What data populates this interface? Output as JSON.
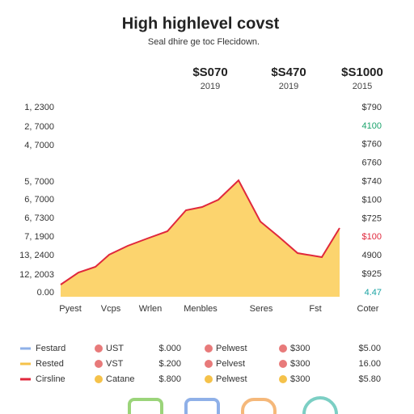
{
  "title": "High highlevel covst",
  "subtitle": "Seal dhire ge toc Flecidown.",
  "stats": [
    {
      "value": "$S070",
      "year": "2019"
    },
    {
      "value": "$S470",
      "year": "2019"
    },
    {
      "value": "$S1000",
      "year": "2015"
    }
  ],
  "left_labels": [
    "1, 2300",
    "2, 7000",
    "4, 7000",
    "5, 7000",
    "6, 7000",
    "6, 7300",
    "7, 1900",
    "13, 2400",
    "12, 2003",
    "0.00"
  ],
  "right_labels": [
    {
      "text": "$790",
      "color": "#333333"
    },
    {
      "text": "4100",
      "color": "#1aa36b"
    },
    {
      "text": "$760",
      "color": "#333333"
    },
    {
      "text": "6760",
      "color": "#333333"
    },
    {
      "text": "$740",
      "color": "#333333"
    },
    {
      "text": "$100",
      "color": "#333333"
    },
    {
      "text": "$725",
      "color": "#333333"
    },
    {
      "text": "$100",
      "color": "#e0283c"
    },
    {
      "text": "4900",
      "color": "#333333"
    },
    {
      "text": "$925",
      "color": "#333333"
    },
    {
      "text": "4.47",
      "color": "#1aa3a3"
    }
  ],
  "x_labels": [
    "Pyest",
    "Vcps",
    "Wrlen",
    "Menbles",
    "Seres",
    "Fst",
    "Coter"
  ],
  "legend": [
    {
      "name": "Festard",
      "color": "#8fb0e8",
      "a": "UST",
      "a_color": "#e87a7a",
      "b": "$.000",
      "c": "Pelwest",
      "c_color": "#e87a7a",
      "d": "$300",
      "d_color": "#e87a7a",
      "e": "$5.00"
    },
    {
      "name": "Rested",
      "color": "#f5c24a",
      "a": "VST",
      "a_color": "#e87a7a",
      "b": "$.200",
      "c": "Pelvest",
      "c_color": "#e87a7a",
      "d": "$300",
      "d_color": "#e87a7a",
      "e": "16.00"
    },
    {
      "name": "Cirsline",
      "color": "#e0283c",
      "a": "Catane",
      "a_color": "#f5c24a",
      "b": "$.800",
      "c": "Pelwest",
      "c_color": "#f5c24a",
      "d": "$300",
      "d_color": "#f5c24a",
      "e": "$5.80"
    }
  ]
}
